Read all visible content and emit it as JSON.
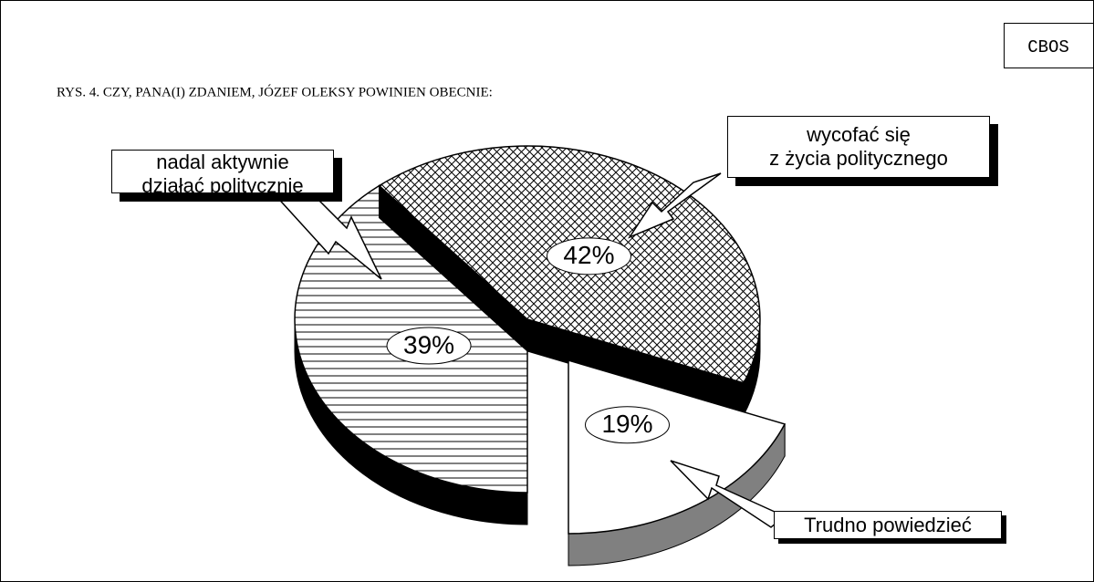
{
  "source": "CBOS",
  "chart_data": {
    "type": "pie3d",
    "title": "RYS. 4. CZY,  PANA(I) ZDANIEM, JÓZEF OLEKSY POWINIEN OBECNIE:",
    "categories": [
      "nadal aktywnie\ndziałać politycznie",
      "wycofać się\nz życia politycznego",
      "Trudno powiedzieć"
    ],
    "values": [
      39,
      42,
      19
    ],
    "value_labels": [
      "39%",
      "42%",
      "19%"
    ],
    "patterns": [
      "horizontal",
      "crosshatch",
      "none"
    ],
    "exploded": [
      false,
      false,
      true
    ]
  }
}
